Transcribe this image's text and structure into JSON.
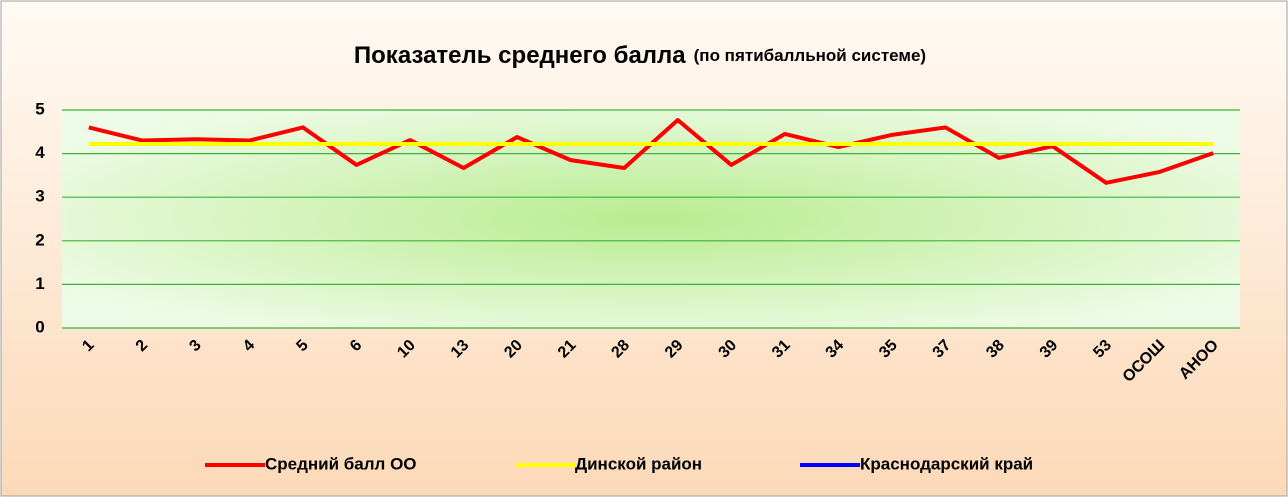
{
  "chart_data": {
    "type": "line",
    "title": "Показатель среднего балла",
    "subtitle": "(по пятибалльной системе)",
    "categories": [
      "1",
      "2",
      "3",
      "4",
      "5",
      "6",
      "10",
      "13",
      "20",
      "21",
      "28",
      "29",
      "30",
      "31",
      "34",
      "35",
      "37",
      "38",
      "39",
      "53",
      "ОСОШ",
      "АНОО"
    ],
    "series": [
      {
        "name": "Средний балл ОО",
        "color": "#ff0000",
        "values": [
          4.6,
          4.3,
          4.33,
          4.3,
          4.6,
          3.74,
          4.31,
          3.67,
          4.38,
          3.85,
          3.67,
          4.77,
          3.74,
          4.45,
          4.15,
          4.43,
          4.6,
          3.9,
          4.17,
          3.33,
          3.58,
          4.01
        ]
      },
      {
        "name": "Динской район",
        "color": "#ffff00",
        "values": [
          4.22,
          4.22,
          4.22,
          4.22,
          4.22,
          4.22,
          4.22,
          4.22,
          4.22,
          4.22,
          4.22,
          4.22,
          4.22,
          4.22,
          4.22,
          4.22,
          4.22,
          4.22,
          4.22,
          4.22,
          4.22,
          4.22
        ]
      },
      {
        "name": "Краснодарский край",
        "color": "#0000ff",
        "values": [
          null,
          null,
          null,
          null,
          null,
          null,
          null,
          null,
          null,
          null,
          null,
          null,
          null,
          null,
          null,
          null,
          null,
          null,
          null,
          null,
          null,
          null
        ]
      }
    ],
    "ylim": [
      0,
      5
    ],
    "yticks": [
      0,
      1,
      2,
      3,
      4,
      5
    ],
    "grid": true,
    "legend": "bottom"
  }
}
